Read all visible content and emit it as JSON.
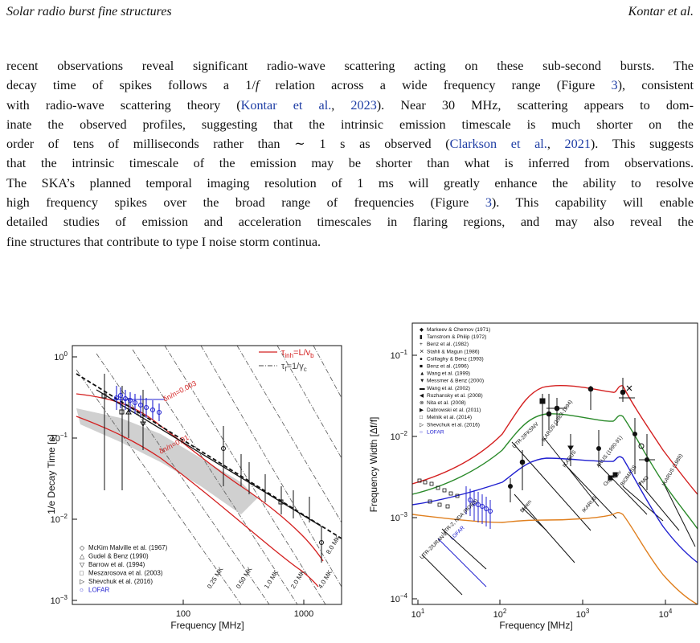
{
  "header": {
    "left": "Solar radio burst fine structures",
    "right": "Kontar et al."
  },
  "paragraph": {
    "lines": [
      [
        {
          "t": "recent observations reveal significant radio-wave scattering acting on these sub-second bursts. The"
        }
      ],
      [
        {
          "t": "decay time of spikes follows a 1/"
        },
        {
          "t": "f",
          "i": 1
        },
        {
          "t": " relation across a wide frequency range (Figure "
        },
        {
          "t": "3",
          "l": 1
        },
        {
          "t": "), consistent"
        }
      ],
      [
        {
          "t": "with radio-wave scattering theory ("
        },
        {
          "t": "Kontar et al.",
          "l": 1
        },
        {
          "t": ", "
        },
        {
          "t": "2023",
          "l": 1
        },
        {
          "t": "). Near 30 MHz, scattering appears to dom-"
        }
      ],
      [
        {
          "t": "inate the observed profiles, suggesting that the intrinsic emission timescale is much shorter on the"
        }
      ],
      [
        {
          "t": "order of tens of milliseconds rather than ∼ 1 s as observed ("
        },
        {
          "t": "Clarkson et al.",
          "l": 1
        },
        {
          "t": ", "
        },
        {
          "t": "2021",
          "l": 1
        },
        {
          "t": "). This suggests"
        }
      ],
      [
        {
          "t": "that the intrinsic timescale of the emission may be shorter than what is inferred from observations."
        }
      ],
      [
        {
          "t": "The SKA’s planned temporal imaging resolution of 1 ms will greatly enhance the ability to resolve"
        }
      ],
      [
        {
          "t": "high frequency spikes over the broad range of frequencies (Figure "
        },
        {
          "t": "3",
          "l": 1
        },
        {
          "t": "). This capability will enable"
        }
      ],
      [
        {
          "t": "detailed studies of emission and acceleration timescales in flaring regions, and may also reveal the"
        }
      ],
      [
        {
          "t": "fine structures that contribute to type I noise storm continua."
        }
      ]
    ]
  },
  "figures": {
    "left": {
      "ylabel": "1/e Decay Time [s]",
      "xlabel": "Frequency [MHz]",
      "xticks": [
        "100",
        "1000"
      ],
      "yticks": [
        "10",
        "10",
        "10",
        "10"
      ],
      "ytick_exps": [
        "0",
        "−1",
        "−2",
        "−3"
      ],
      "line_legend": [
        {
          "label": "τ",
          "sub": "inh",
          "rest": "=L/v",
          "sub2": "b",
          "color": "#d42020"
        },
        {
          "label": "τ",
          "sub": "f",
          "rest": "=1/γ",
          "sub2": "c",
          "color": "#444444"
        }
      ],
      "marker_legend": [
        {
          "sym": "◇",
          "text": "McKim Malville et al. (1967)",
          "color": "#111111"
        },
        {
          "sym": "△",
          "text": "Gudel & Benz (1990)",
          "color": "#111111"
        },
        {
          "sym": "▽",
          "text": "Barrow et al. (1994)",
          "color": "#111111"
        },
        {
          "sym": "□",
          "text": "Meszarosova et al. (2003)",
          "color": "#111111"
        },
        {
          "sym": "▷",
          "text": "Shevchuk et al. (2016)",
          "color": "#111111"
        },
        {
          "sym": "○",
          "text": "LOFAR",
          "color": "#2020d0"
        }
      ],
      "curve_labels": [
        "δn/n=0.003",
        "δn/n=0.01"
      ],
      "temp_labels": [
        "0.25 MK",
        "0.50 MK",
        "1.0 MK",
        "2.0 MK",
        "4.0 MK",
        "8.0 MK"
      ]
    },
    "right": {
      "ylabel": "Frequency Width [Δf/f]",
      "xlabel": "Frequency [MHz]",
      "xticks": [
        "10",
        "10",
        "10",
        "10"
      ],
      "xtick_exps": [
        "1",
        "2",
        "3",
        "4"
      ],
      "yticks": [
        "10",
        "10",
        "10",
        "10"
      ],
      "ytick_exps": [
        "−1",
        "−2",
        "−3",
        "−4"
      ],
      "legend": [
        {
          "sym": "◆",
          "text": "Markeev & Chernov (1971)",
          "color": "#111111"
        },
        {
          "sym": "▮",
          "text": "Tarnstrom & Philip (1972)",
          "color": "#111111"
        },
        {
          "sym": "+",
          "text": "Benz et al. (1982)",
          "color": "#111111"
        },
        {
          "sym": "✕",
          "text": "Stahli & Magun (1986)",
          "color": "#111111"
        },
        {
          "sym": "●",
          "text": "Csillaghy & Benz (1993)",
          "color": "#111111"
        },
        {
          "sym": "■",
          "text": "Benz et al. (1996)",
          "color": "#111111"
        },
        {
          "sym": "▲",
          "text": "Wang et al. (1999)",
          "color": "#111111"
        },
        {
          "sym": "▼",
          "text": "Messmer & Benz (2000)",
          "color": "#111111"
        },
        {
          "sym": "▬",
          "text": "Wang et al. (2002)",
          "color": "#111111"
        },
        {
          "sym": "◀",
          "text": "Rozhansky et al. (2008)",
          "color": "#111111"
        },
        {
          "sym": "⊗",
          "text": "Nita et al. (2008)",
          "color": "#111111"
        },
        {
          "sym": "▶",
          "text": "Dabrowski et al. (2011)",
          "color": "#111111"
        },
        {
          "sym": "□",
          "text": "Melnik et al. (2014)",
          "color": "#111111"
        },
        {
          "sym": "▷",
          "text": "Shevchuk et al. (2016)",
          "color": "#111111"
        },
        {
          "sym": "○",
          "text": "LOFAR",
          "color": "#2020d0"
        }
      ],
      "band_labels": [
        "UTR-2/URAN-2",
        "UTR-2, NDA (ROBS)",
        "LOFAR",
        "UTR-2/FKSNV",
        "IKARUS (1983-1994)",
        "IKARUS",
        "ARUS (1990-91)",
        "Ondrejov",
        "Bleien",
        "BIOMASS",
        "PMO",
        "IKARUS (1989)",
        "IKARUS"
      ]
    }
  }
}
